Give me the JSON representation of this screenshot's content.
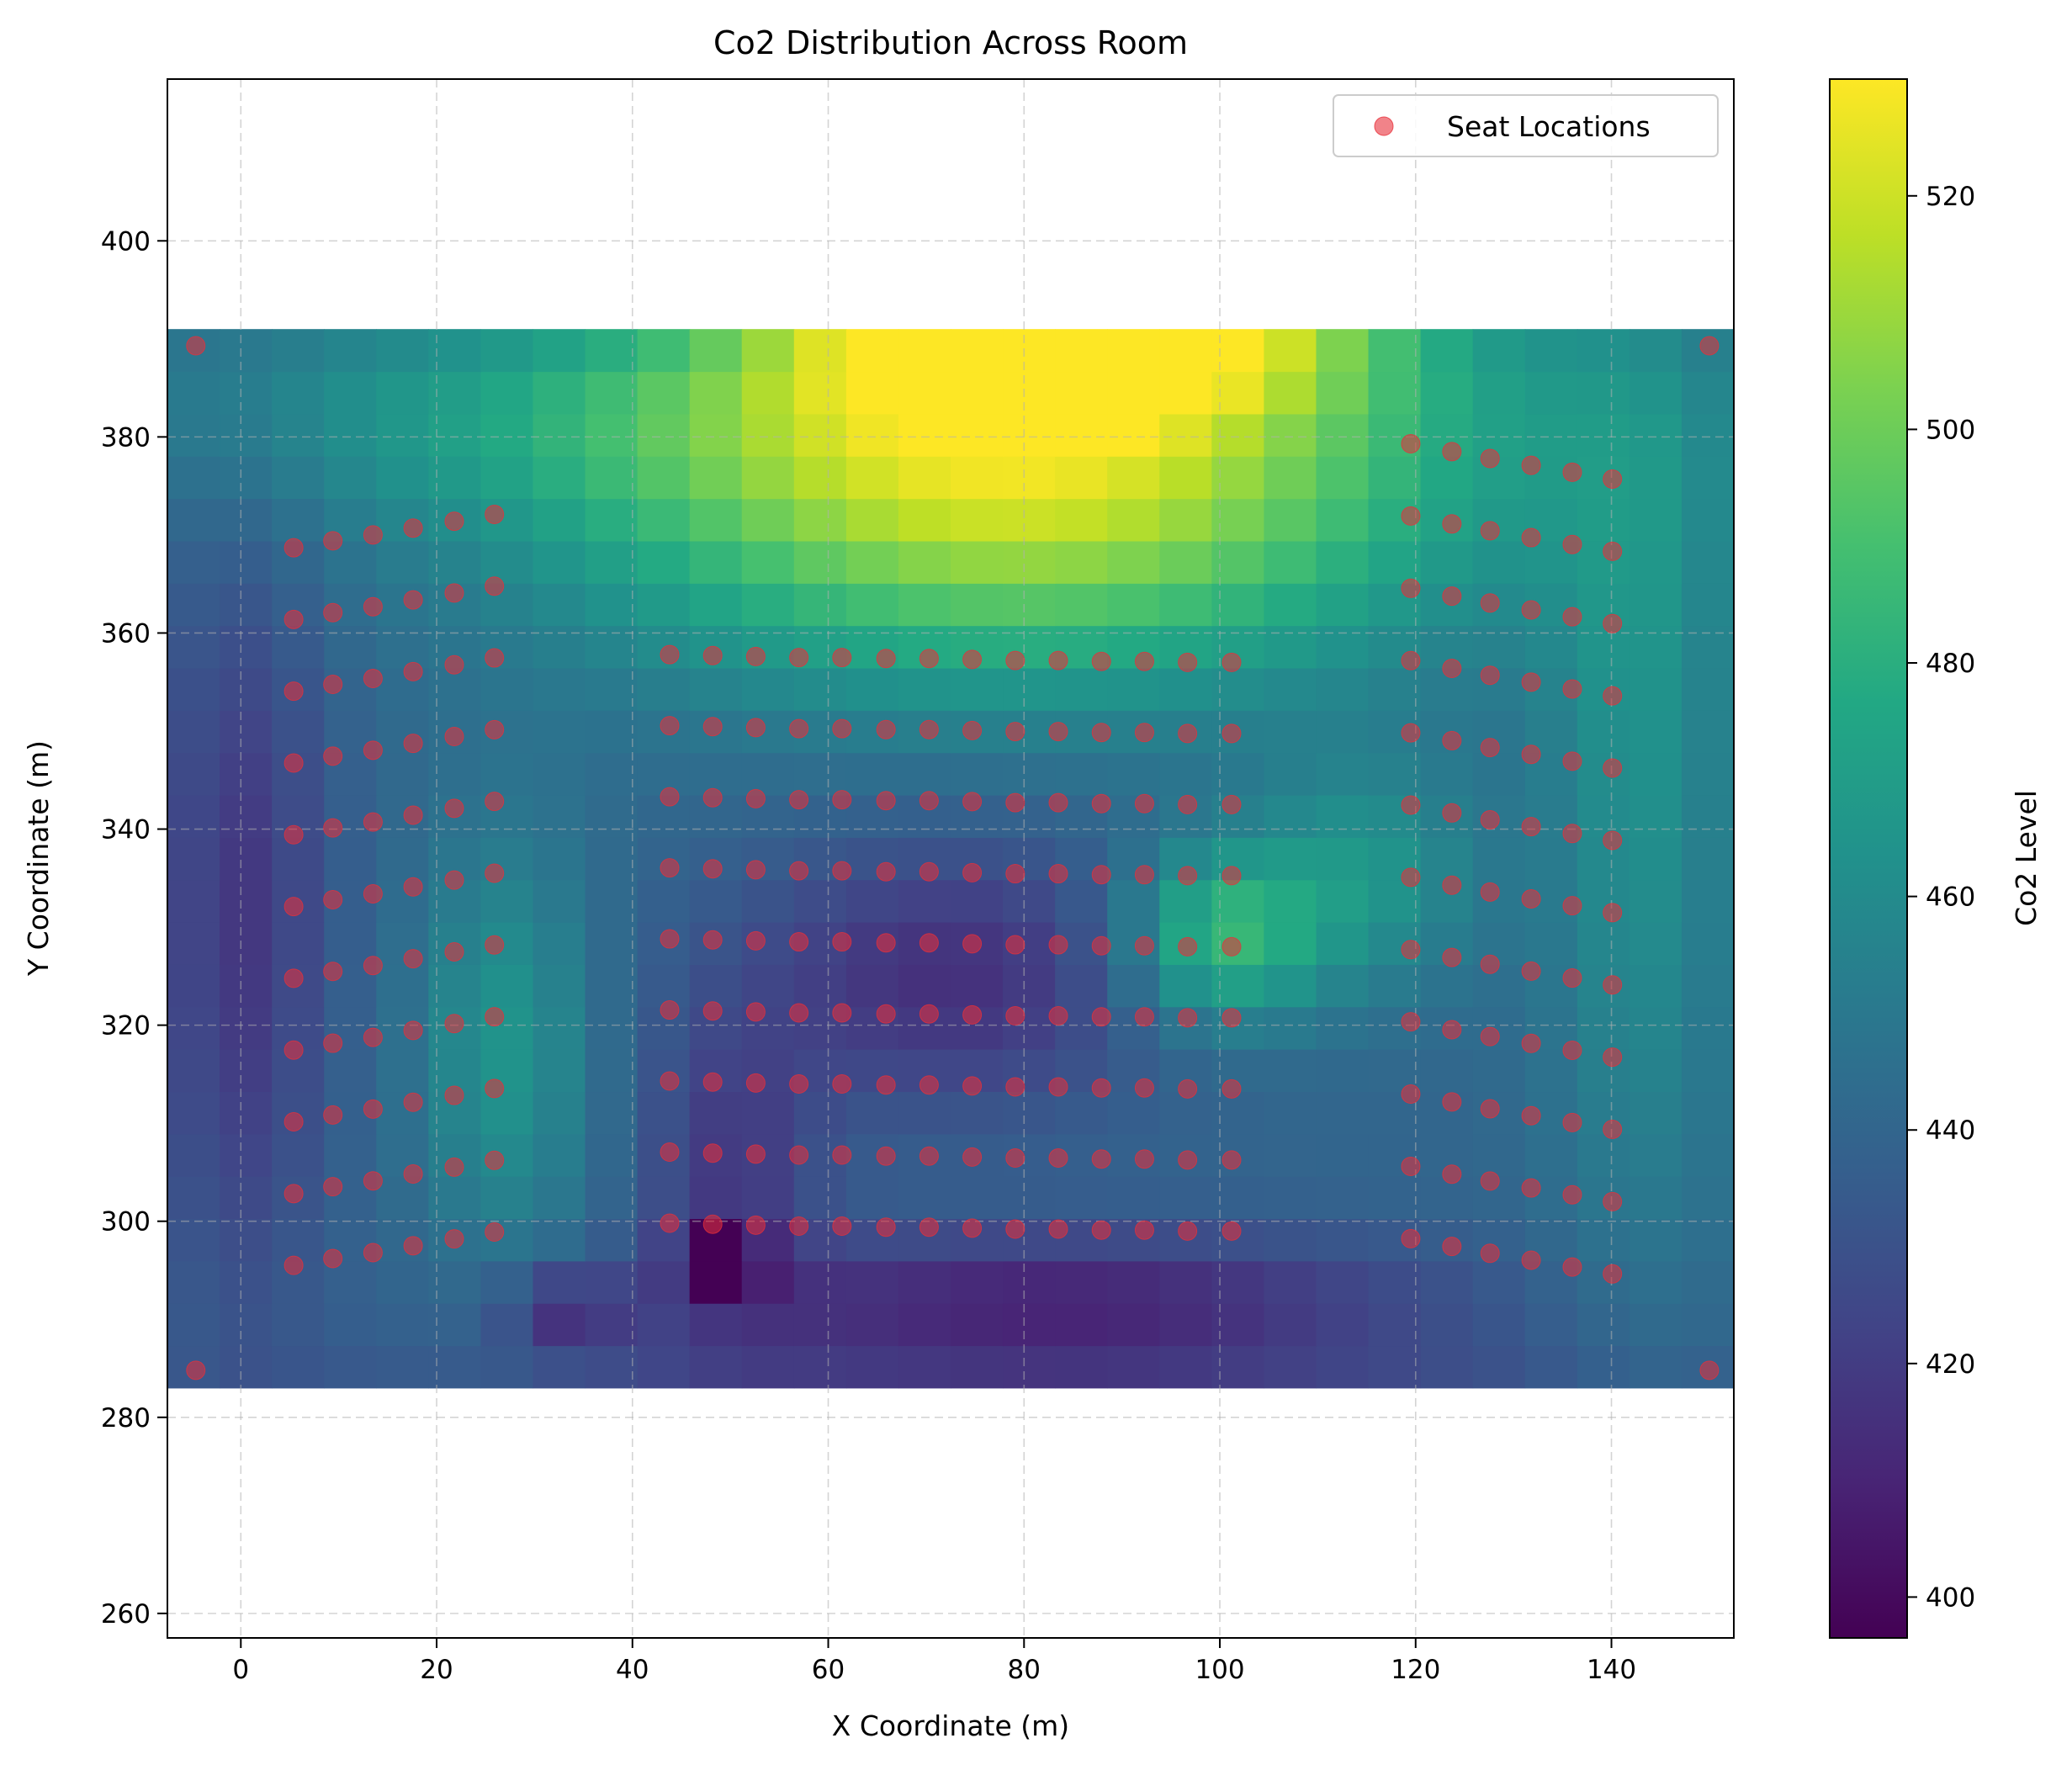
{
  "chart_data": {
    "type": "heatmap",
    "title": "Co2 Distribution Across Room",
    "xlabel": "X Coordinate (m)",
    "ylabel": "Y Coordinate (m)",
    "xlim": [
      -7.5,
      152.5
    ],
    "ylim": [
      257.5,
      416.5
    ],
    "xticks": [
      0,
      20,
      40,
      60,
      80,
      100,
      120,
      140
    ],
    "yticks": [
      260,
      280,
      300,
      320,
      340,
      360,
      380,
      400
    ],
    "grid": true,
    "legend": {
      "position": "top-right",
      "entries": [
        {
          "label": "Seat Locations",
          "color": "#e8303a"
        }
      ]
    },
    "colorbar": {
      "label": "Co2 Level",
      "range": [
        396.5,
        530
      ],
      "ticks": [
        400,
        420,
        440,
        460,
        480,
        500,
        520
      ],
      "colormap": "viridis"
    },
    "heatmap": {
      "x_range": [
        -7.5,
        152.5
      ],
      "y_range": [
        283,
        391
      ],
      "nx": 30,
      "ny": 25,
      "value_min": 396.5,
      "value_max": 530
    },
    "seat_color": "#e8303a",
    "series": [
      {
        "name": "Seat Locations",
        "groups": [
          {
            "x": [
              -4.6,
              150
            ],
            "y": [
              389.3,
              389.3
            ]
          },
          {
            "x": [
              -4.6,
              150
            ],
            "y": [
              284.8,
              284.8
            ]
          },
          {
            "x": [
              5.4,
              9.4,
              13.5,
              17.6,
              21.8,
              25.9
            ],
            "y_first": [
              368.7,
              369.4,
              370.0,
              370.7,
              371.4,
              372.1
            ],
            "dy": -7.32,
            "rows": 11
          },
          {
            "x": [
              43.8,
              48.2,
              52.6,
              57.0,
              61.4,
              65.9,
              70.3,
              74.7,
              79.1,
              83.5,
              87.9,
              92.3,
              96.7,
              101.2
            ],
            "y_first": [
              357.8,
              357.7,
              357.6,
              357.5,
              357.5,
              357.4,
              357.4,
              357.3,
              357.2,
              357.2,
              357.1,
              357.1,
              357.0,
              357.0
            ],
            "dy": -7.25,
            "rows": 9
          },
          {
            "x": [
              119.5,
              123.7,
              127.6,
              131.8,
              136.0,
              140.1
            ],
            "y_first": [
              379.3,
              378.5,
              377.8,
              377.1,
              376.4,
              375.7
            ],
            "dy": -7.37,
            "rows": 12
          }
        ]
      }
    ]
  }
}
